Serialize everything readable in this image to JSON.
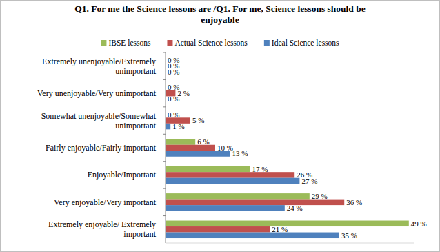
{
  "chart_data": {
    "type": "bar",
    "orientation": "horizontal",
    "title": "Q1. For me the Science lessons are /Q1. For me, Science lessons should be enjoyable",
    "categories": [
      "Extremely unenjoyable/Extremely unimportant",
      "Very unenjoyable/Very unimportant",
      "Somewhat unenjoyable/Somewhat unimportant",
      "Fairly enjoyable/Fairly important",
      "Enjoyable/Important",
      "Very enjoyable/Very important",
      "Extremely enjoyable/ Extremely important"
    ],
    "series": [
      {
        "name": "IBSE lessons",
        "color": "#9bbb59",
        "values": [
          0,
          0,
          0,
          6,
          17,
          29,
          49
        ],
        "value_labels": [
          "0 %",
          "0 %",
          "0 %",
          "6 %",
          "17 %",
          "29 %",
          "49 %"
        ]
      },
      {
        "name": "Actual Science lessons",
        "color": "#c0504d",
        "values": [
          0,
          2,
          5,
          10,
          26,
          36,
          21
        ],
        "value_labels": [
          "0 %",
          "2 %",
          "5 %",
          "10 %",
          "26 %",
          "36 %",
          "21 %"
        ]
      },
      {
        "name": "Ideal Science lessons",
        "color": "#4f81bd",
        "values": [
          0,
          0,
          1,
          13,
          27,
          24,
          35
        ],
        "value_labels": [
          "0 %",
          "0 %",
          "1 %",
          "13 %",
          "27 %",
          "24 %",
          "35 %"
        ]
      }
    ],
    "xlim": [
      0,
      50
    ],
    "grid": false,
    "legend": "top",
    "data_labels": true,
    "tick_labels": "y"
  }
}
